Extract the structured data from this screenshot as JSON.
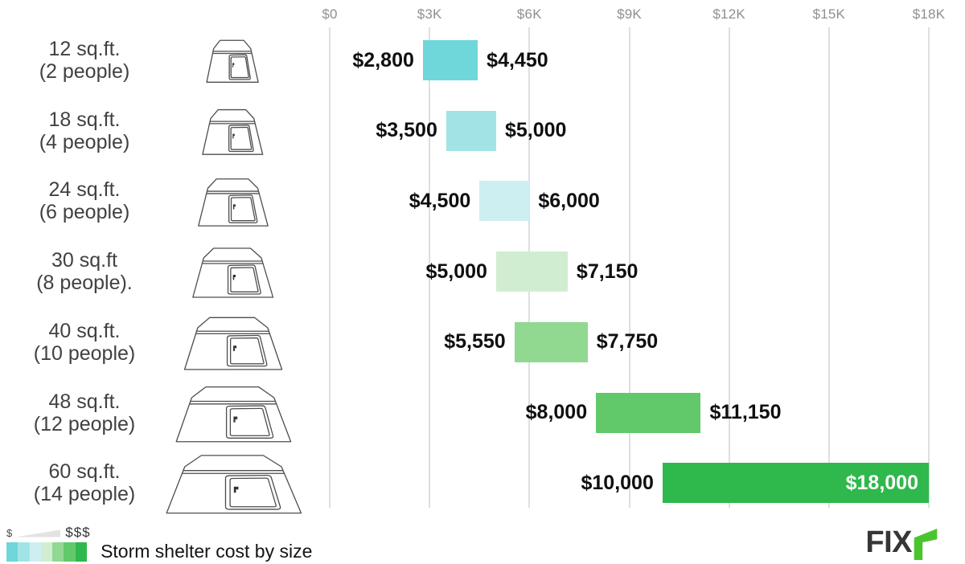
{
  "chart_data": {
    "type": "bar",
    "orientation": "horizontal-range",
    "title": "Storm shelter cost by size",
    "x_axis": {
      "ticks": [
        {
          "label": "$0",
          "value": 0
        },
        {
          "label": "$3K",
          "value": 3000
        },
        {
          "label": "$6K",
          "value": 6000
        },
        {
          "label": "$9K",
          "value": 9000
        },
        {
          "label": "$12K",
          "value": 12000
        },
        {
          "label": "$15K",
          "value": 15000
        },
        {
          "label": "$18K",
          "value": 18000
        }
      ],
      "xlim": [
        0,
        18000
      ],
      "grid": true
    },
    "rows": [
      {
        "label_line1": "12 sq.ft.",
        "label_line2": "(2 people)",
        "min": 2800,
        "max": 4450,
        "min_label": "$2,800",
        "max_label": "$4,450",
        "color": "#6fd6d9",
        "max_label_inside": false
      },
      {
        "label_line1": "18 sq.ft.",
        "label_line2": "(4 people)",
        "min": 3500,
        "max": 5000,
        "min_label": "$3,500",
        "max_label": "$5,000",
        "color": "#a2e4e6",
        "max_label_inside": false
      },
      {
        "label_line1": "24 sq.ft.",
        "label_line2": "(6 people)",
        "min": 4500,
        "max": 6000,
        "min_label": "$4,500",
        "max_label": "$6,000",
        "color": "#cdeff1",
        "max_label_inside": false
      },
      {
        "label_line1": "30 sq.ft",
        "label_line2": "(8 people).",
        "min": 5000,
        "max": 7150,
        "min_label": "$5,000",
        "max_label": "$7,150",
        "color": "#d1edd1",
        "max_label_inside": false
      },
      {
        "label_line1": "40 sq.ft.",
        "label_line2": "(10 people)",
        "min": 5550,
        "max": 7750,
        "min_label": "$5,550",
        "max_label": "$7,750",
        "color": "#91d891",
        "max_label_inside": false
      },
      {
        "label_line1": "48 sq.ft.",
        "label_line2": "(12 people)",
        "min": 8000,
        "max": 11150,
        "min_label": "$8,000",
        "max_label": "$11,150",
        "color": "#61c96a",
        "max_label_inside": false
      },
      {
        "label_line1": "60 sq.ft.",
        "label_line2": "(14 people)",
        "min": 10000,
        "max": 18000,
        "min_label": "$10,000",
        "max_label": "$18,000",
        "color": "#2fb84c",
        "max_label_inside": true
      }
    ],
    "legend": {
      "low": "$",
      "high": "$$$",
      "label": "Storm shelter cost by size",
      "swatches": [
        "#6fd6d9",
        "#a2e4e6",
        "#cdeff1",
        "#d1edd1",
        "#91d891",
        "#61c96a",
        "#2fb84c"
      ]
    }
  },
  "branding": {
    "logo_text": "FIX",
    "logo_green": "#4ac42f",
    "logo_dark": "#363636"
  }
}
